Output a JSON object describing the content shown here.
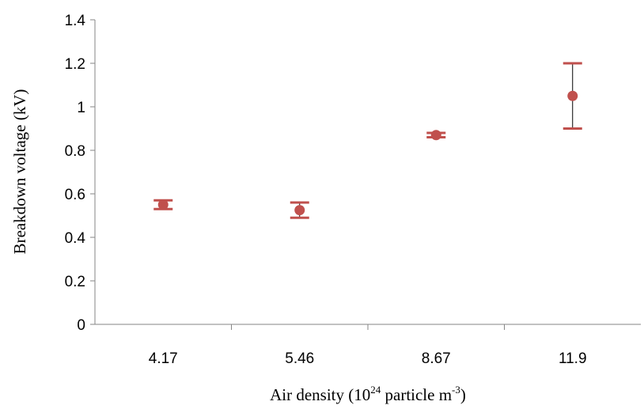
{
  "chart_data": {
    "type": "scatter",
    "title": "",
    "xlabel": "Air density (10",
    "xlabel_sup1": "24",
    "xlabel_mid": " particle m",
    "xlabel_sup2": "-3",
    "xlabel_end": ")",
    "ylabel": "Breakdown voltage (kV)",
    "categories": [
      "4.17",
      "5.46",
      "8.67",
      "11.9"
    ],
    "ylim": [
      0,
      1.4
    ],
    "y_ticks": [
      "0",
      "0.2",
      "0.4",
      "0.6",
      "0.8",
      "1",
      "1.2",
      "1.4"
    ],
    "grid": false,
    "marker_color": "#C0504D",
    "series": [
      {
        "values": [
          0.55,
          0.525,
          0.87,
          1.05
        ],
        "error_low": [
          0.53,
          0.49,
          0.86,
          0.9
        ],
        "error_high": [
          0.57,
          0.56,
          0.88,
          1.2
        ]
      }
    ]
  }
}
